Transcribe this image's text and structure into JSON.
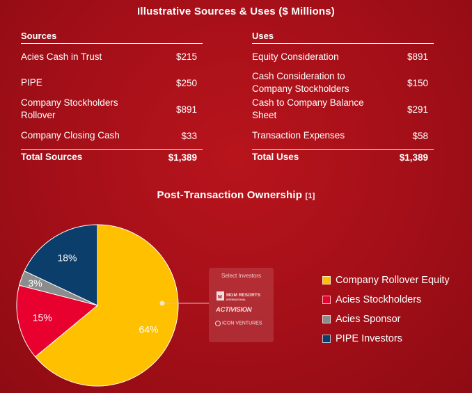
{
  "titles": {
    "main": "Illustrative Sources & Uses ($ Millions)",
    "ownership": "Post-Transaction Ownership",
    "ownership_note": "[1]"
  },
  "sources": {
    "header": "Sources",
    "rows": [
      {
        "label": "Acies Cash in Trust",
        "value": "$215"
      },
      {
        "label": "PIPE",
        "value": "$250"
      },
      {
        "label": "Company Stockholders Rollover",
        "value": "$891"
      },
      {
        "label": "Company Closing Cash",
        "value": "$33"
      }
    ],
    "total": {
      "label": "Total Sources",
      "value": "$1,389"
    }
  },
  "uses": {
    "header": "Uses",
    "rows": [
      {
        "label": "Equity Consideration",
        "value": "$891"
      },
      {
        "label": "Cash Consideration to Company Stockholders",
        "value": "$150"
      },
      {
        "label": "Cash to Company Balance Sheet",
        "value": "$291"
      },
      {
        "label": "Transaction Expenses",
        "value": "$58"
      }
    ],
    "total": {
      "label": "Total Uses",
      "value": "$1,389"
    }
  },
  "chart_data": {
    "type": "pie",
    "categories": [
      "Company Rollover Equity",
      "Acies Stockholders",
      "Acies Sponsor",
      "PIPE Investors"
    ],
    "values": [
      64,
      15,
      3,
      18
    ],
    "labels": [
      "64%",
      "15%",
      "3%",
      "18%"
    ],
    "colors": [
      "#ffc000",
      "#e8002f",
      "#8c8c8c",
      "#0c3e6c"
    ],
    "legend_position": "right"
  },
  "investors": {
    "header": "Select Investors",
    "logos": [
      "MGM RESORTS",
      "INTERNATIONAL",
      "ACTIVISION",
      "ICON VENTURES"
    ]
  }
}
